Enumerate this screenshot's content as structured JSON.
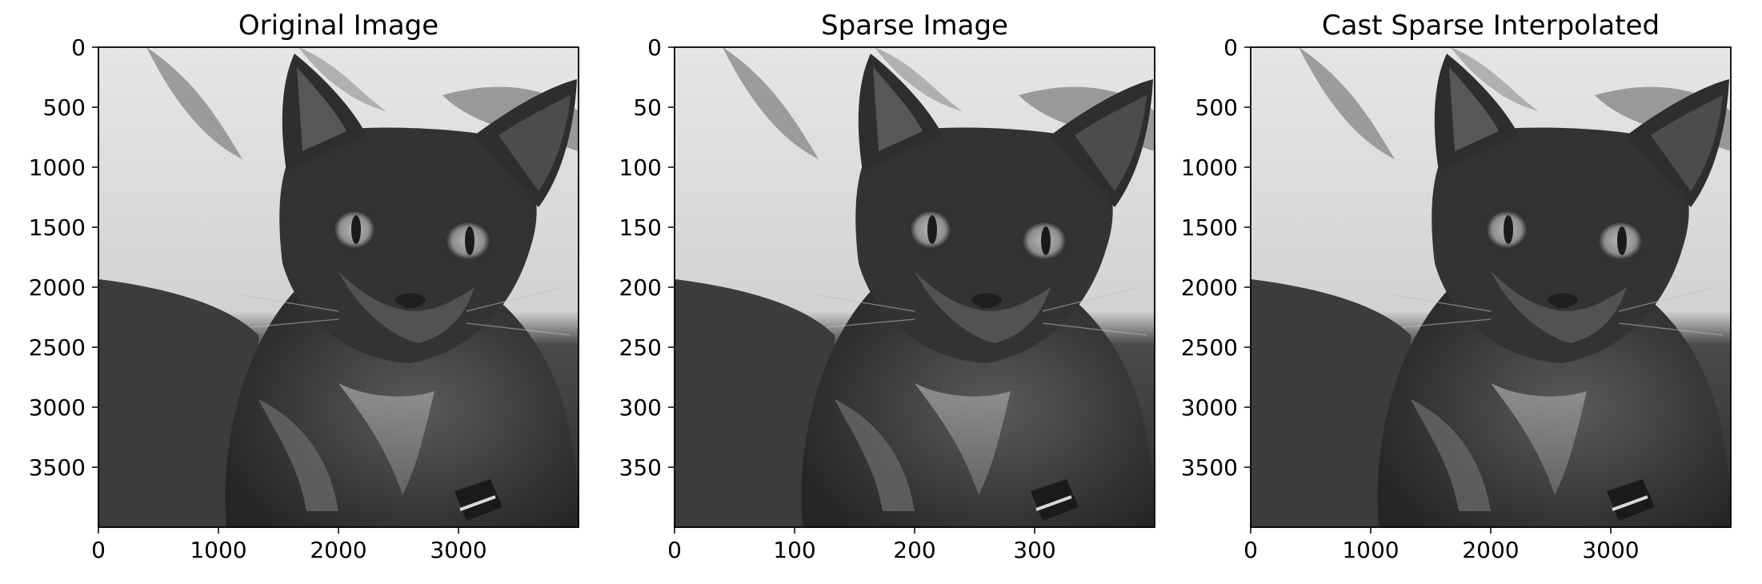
{
  "figure": {
    "colormap": "gray",
    "background": "#ffffff",
    "subject": "cat-photo-grayscale"
  },
  "chart_data": [
    {
      "type": "image",
      "title": "Original Image",
      "xticks": [
        0,
        1000,
        2000,
        3000
      ],
      "yticks": [
        0,
        500,
        1000,
        1500,
        2000,
        2500,
        3000,
        3500
      ],
      "xlim": [
        0,
        4000
      ],
      "ylim": [
        4000,
        0
      ],
      "y_inverted": true,
      "grid": false,
      "legend": "none"
    },
    {
      "type": "image",
      "title": "Sparse Image",
      "xticks": [
        0,
        100,
        200,
        300
      ],
      "yticks": [
        0,
        50,
        100,
        150,
        200,
        250,
        300,
        350
      ],
      "xlim": [
        0,
        400
      ],
      "ylim": [
        400,
        0
      ],
      "y_inverted": true,
      "grid": false,
      "legend": "none"
    },
    {
      "type": "image",
      "title": "Cast Sparse Interpolated",
      "xticks": [
        0,
        1000,
        2000,
        3000
      ],
      "yticks": [
        0,
        500,
        1000,
        1500,
        2000,
        2500,
        3000,
        3500
      ],
      "xlim": [
        0,
        4000
      ],
      "ylim": [
        4000,
        0
      ],
      "y_inverted": true,
      "grid": false,
      "legend": "none"
    }
  ]
}
